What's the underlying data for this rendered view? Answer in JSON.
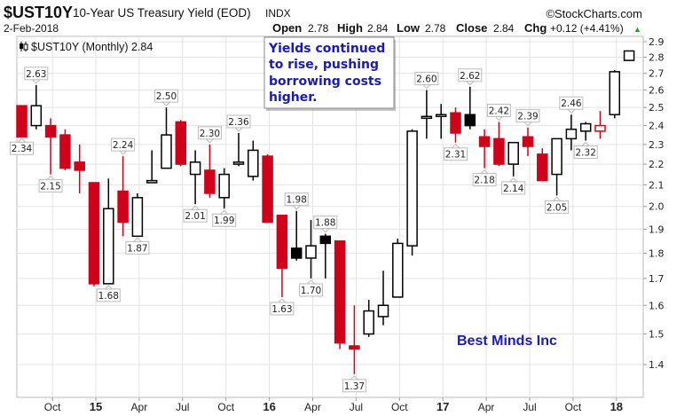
{
  "header": {
    "symbol": "$UST10Y",
    "name": "10-Year US Treasury Yield (EOD)",
    "exchange": "INDX",
    "brand": "©StockCharts.com",
    "date": "2-Feb-2018",
    "open_label": "Open",
    "open": "2.78",
    "high_label": "High",
    "high": "2.84",
    "low_label": "Low",
    "low": "2.78",
    "close_label": "Close",
    "close": "2.84",
    "chg_label": "Chg",
    "chg": "+0.12 (+4.41%)",
    "chg_arrow": "▲"
  },
  "legend": {
    "text": "$UST10Y (Monthly) 2.84",
    "icon": "candlestick-icon"
  },
  "annotation_box": {
    "text_lines": [
      "Yields continued",
      "to rise, pushing",
      "borrowing costs",
      "higher."
    ]
  },
  "watermark": "Best Minds Inc",
  "colors": {
    "up": "#000000",
    "down": "#d0021b",
    "annotation_text": "#1a1ab8",
    "grid": "#e3e3e3"
  },
  "chart_data": {
    "type": "candlestick",
    "scale": "log",
    "grid": true,
    "ylim": [
      1.3,
      2.95
    ],
    "y_ticks": [
      1.4,
      1.5,
      1.6,
      1.7,
      1.8,
      1.9,
      2.0,
      2.1,
      2.2,
      2.3,
      2.4,
      2.5,
      2.6,
      2.7,
      2.8,
      2.9
    ],
    "y_tick_labels": [
      "1.4",
      "1.5",
      "1.6",
      "1.7",
      "1.8",
      "1.9",
      "2.0",
      "2.1",
      "2.2",
      "2.3",
      "2.4",
      "2.5",
      "2.6",
      "2.7",
      "2.8",
      "2.9"
    ],
    "x_ticks": [
      {
        "month": "Oct 2014",
        "label": "Oct",
        "year": false
      },
      {
        "month": "Jan 2015",
        "label": "15",
        "year": true
      },
      {
        "month": "Apr 2015",
        "label": "Apr",
        "year": false
      },
      {
        "month": "Jul 2015",
        "label": "Jul",
        "year": false
      },
      {
        "month": "Oct 2015",
        "label": "Oct",
        "year": false
      },
      {
        "month": "Jan 2016",
        "label": "16",
        "year": true
      },
      {
        "month": "Apr 2016",
        "label": "Apr",
        "year": false
      },
      {
        "month": "Jul 2016",
        "label": "Jul",
        "year": false
      },
      {
        "month": "Oct 2016",
        "label": "Oct",
        "year": false
      },
      {
        "month": "Jan 2017",
        "label": "17",
        "year": true
      },
      {
        "month": "Apr 2017",
        "label": "Apr",
        "year": false
      },
      {
        "month": "Jul 2017",
        "label": "Jul",
        "year": false
      },
      {
        "month": "Oct 2017",
        "label": "Oct",
        "year": false
      },
      {
        "month": "Jan 2018",
        "label": "18",
        "year": true
      }
    ],
    "candles": [
      {
        "month": "Aug 2014",
        "o": 2.51,
        "h": 2.51,
        "l": 2.34,
        "c": 2.34
      },
      {
        "month": "Sep 2014",
        "o": 2.4,
        "h": 2.63,
        "l": 2.38,
        "c": 2.51
      },
      {
        "month": "Oct 2014",
        "o": 2.4,
        "h": 2.44,
        "l": 2.15,
        "c": 2.34
      },
      {
        "month": "Nov 2014",
        "o": 2.35,
        "h": 2.38,
        "l": 2.17,
        "c": 2.18
      },
      {
        "month": "Dec 2014",
        "o": 2.21,
        "h": 2.3,
        "l": 2.06,
        "c": 2.17
      },
      {
        "month": "Jan 2015",
        "o": 2.11,
        "h": 2.11,
        "l": 1.67,
        "c": 1.68
      },
      {
        "month": "Feb 2015",
        "o": 1.68,
        "h": 2.13,
        "l": 1.68,
        "c": 1.99
      },
      {
        "month": "Mar 2015",
        "o": 2.07,
        "h": 2.24,
        "l": 1.87,
        "c": 1.93
      },
      {
        "month": "Apr 2015",
        "o": 1.87,
        "h": 2.06,
        "l": 1.87,
        "c": 2.04
      },
      {
        "month": "May 2015",
        "o": 2.11,
        "h": 2.27,
        "l": 2.11,
        "c": 2.12
      },
      {
        "month": "Jun 2015",
        "o": 2.18,
        "h": 2.5,
        "l": 2.18,
        "c": 2.35
      },
      {
        "month": "Jul 2015",
        "o": 2.42,
        "h": 2.43,
        "l": 2.19,
        "c": 2.2
      },
      {
        "month": "Aug 2015",
        "o": 2.15,
        "h": 2.27,
        "l": 2.01,
        "c": 2.21
      },
      {
        "month": "Sep 2015",
        "o": 2.17,
        "h": 2.3,
        "l": 2.04,
        "c": 2.06
      },
      {
        "month": "Oct 2015",
        "o": 2.04,
        "h": 2.18,
        "l": 1.99,
        "c": 2.15
      },
      {
        "month": "Nov 2015",
        "o": 2.2,
        "h": 2.36,
        "l": 2.19,
        "c": 2.21
      },
      {
        "month": "Dec 2015",
        "o": 2.14,
        "h": 2.32,
        "l": 2.12,
        "c": 2.27
      },
      {
        "month": "Jan 2016",
        "o": 2.24,
        "h": 2.25,
        "l": 1.93,
        "c": 1.93
      },
      {
        "month": "Feb 2016",
        "o": 1.96,
        "h": 1.96,
        "l": 1.63,
        "c": 1.74
      },
      {
        "month": "Mar 2016",
        "o": 1.82,
        "h": 1.98,
        "l": 1.77,
        "c": 1.78
      },
      {
        "month": "Apr 2016",
        "o": 1.78,
        "h": 1.94,
        "l": 1.7,
        "c": 1.83
      },
      {
        "month": "May 2016",
        "o": 1.87,
        "h": 1.88,
        "l": 1.7,
        "c": 1.84
      },
      {
        "month": "Jun 2016",
        "o": 1.85,
        "h": 1.85,
        "l": 1.45,
        "c": 1.47
      },
      {
        "month": "Jul 2016",
        "o": 1.46,
        "h": 1.6,
        "l": 1.37,
        "c": 1.45
      },
      {
        "month": "Aug 2016",
        "o": 1.5,
        "h": 1.62,
        "l": 1.49,
        "c": 1.58
      },
      {
        "month": "Sep 2016",
        "o": 1.56,
        "h": 1.73,
        "l": 1.53,
        "c": 1.6
      },
      {
        "month": "Oct 2016",
        "o": 1.63,
        "h": 1.86,
        "l": 1.63,
        "c": 1.84
      },
      {
        "month": "Nov 2016",
        "o": 1.83,
        "h": 2.38,
        "l": 1.79,
        "c": 2.37
      },
      {
        "month": "Dec 2016",
        "o": 2.44,
        "h": 2.6,
        "l": 2.33,
        "c": 2.45
      },
      {
        "month": "Jan 2017",
        "o": 2.45,
        "h": 2.52,
        "l": 2.33,
        "c": 2.46
      },
      {
        "month": "Feb 2017",
        "o": 2.47,
        "h": 2.5,
        "l": 2.31,
        "c": 2.36
      },
      {
        "month": "Mar 2017",
        "o": 2.46,
        "h": 2.62,
        "l": 2.38,
        "c": 2.4
      },
      {
        "month": "Apr 2017",
        "o": 2.34,
        "h": 2.38,
        "l": 2.18,
        "c": 2.29
      },
      {
        "month": "May 2017",
        "o": 2.33,
        "h": 2.42,
        "l": 2.19,
        "c": 2.2
      },
      {
        "month": "Jun 2017",
        "o": 2.2,
        "h": 2.31,
        "l": 2.14,
        "c": 2.31
      },
      {
        "month": "Jul 2017",
        "o": 2.34,
        "h": 2.39,
        "l": 2.24,
        "c": 2.29
      },
      {
        "month": "Aug 2017",
        "o": 2.25,
        "h": 2.28,
        "l": 2.12,
        "c": 2.12
      },
      {
        "month": "Sep 2017",
        "o": 2.15,
        "h": 2.33,
        "l": 2.05,
        "c": 2.33
      },
      {
        "month": "Oct 2017",
        "o": 2.33,
        "h": 2.46,
        "l": 2.27,
        "c": 2.38
      },
      {
        "month": "Nov 2017",
        "o": 2.37,
        "h": 2.42,
        "l": 2.32,
        "c": 2.41
      },
      {
        "month": "Dec 2017",
        "o": 2.37,
        "h": 2.48,
        "l": 2.33,
        "c": 2.4
      },
      {
        "month": "Jan 2018",
        "o": 2.46,
        "h": 2.72,
        "l": 2.44,
        "c": 2.71
      },
      {
        "month": "Feb 2018",
        "o": 2.78,
        "h": 2.84,
        "l": 2.78,
        "c": 2.84
      }
    ],
    "value_labels": [
      {
        "month": "Aug 2014",
        "text": "2.34",
        "pos": "below"
      },
      {
        "month": "Sep 2014",
        "text": "2.63",
        "pos": "above"
      },
      {
        "month": "Oct 2014",
        "text": "2.15",
        "pos": "below"
      },
      {
        "month": "Feb 2015",
        "text": "1.68",
        "pos": "below"
      },
      {
        "month": "Mar 2015",
        "text": "2.24",
        "pos": "above"
      },
      {
        "month": "Apr 2015",
        "text": "1.87",
        "pos": "below"
      },
      {
        "month": "Jun 2015",
        "text": "2.50",
        "pos": "above"
      },
      {
        "month": "Aug 2015",
        "text": "2.01",
        "pos": "below"
      },
      {
        "month": "Sep 2015",
        "text": "2.30",
        "pos": "above"
      },
      {
        "month": "Oct 2015",
        "text": "1.99",
        "pos": "below"
      },
      {
        "month": "Nov 2015",
        "text": "2.36",
        "pos": "above"
      },
      {
        "month": "Feb 2016",
        "text": "1.63",
        "pos": "below"
      },
      {
        "month": "Mar 2016",
        "text": "1.98",
        "pos": "above"
      },
      {
        "month": "Apr 2016",
        "text": "1.70",
        "pos": "below"
      },
      {
        "month": "May 2016",
        "text": "1.88",
        "pos": "above"
      },
      {
        "month": "Jul 2016",
        "text": "1.37",
        "pos": "below"
      },
      {
        "month": "Dec 2016",
        "text": "2.60",
        "pos": "above"
      },
      {
        "month": "Feb 2017",
        "text": "2.31",
        "pos": "below"
      },
      {
        "month": "Mar 2017",
        "text": "2.62",
        "pos": "above"
      },
      {
        "month": "Apr 2017",
        "text": "2.18",
        "pos": "below"
      },
      {
        "month": "May 2017",
        "text": "2.42",
        "pos": "above"
      },
      {
        "month": "Jun 2017",
        "text": "2.14",
        "pos": "below"
      },
      {
        "month": "Jul 2017",
        "text": "2.39",
        "pos": "above"
      },
      {
        "month": "Sep 2017",
        "text": "2.05",
        "pos": "below"
      },
      {
        "month": "Oct 2017",
        "text": "2.46",
        "pos": "above"
      },
      {
        "month": "Nov 2017",
        "text": "2.32",
        "pos": "below"
      }
    ]
  }
}
